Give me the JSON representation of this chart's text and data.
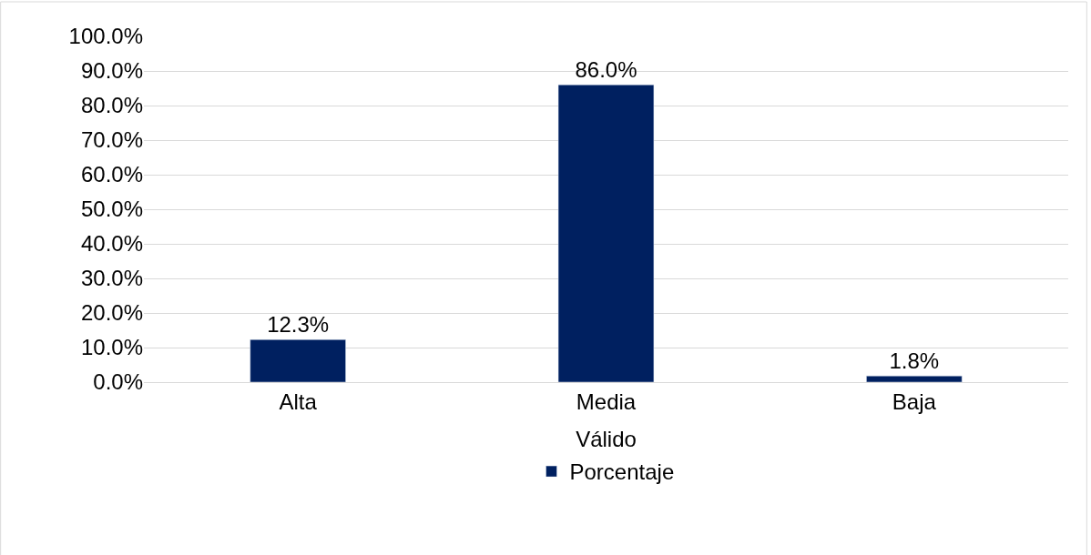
{
  "chart_data": {
    "type": "bar",
    "categories": [
      "Alta",
      "Media",
      "Baja"
    ],
    "series": [
      {
        "name": "Porcentaje",
        "color": "#002060",
        "values": [
          12.3,
          86.0,
          1.8
        ],
        "value_labels": [
          "12.3%",
          "86.0%",
          "1.8%"
        ]
      }
    ],
    "xlabel": "Válido",
    "ylim": [
      0,
      100
    ],
    "yticks": [
      {
        "value": 0,
        "label": "0.0%"
      },
      {
        "value": 10,
        "label": "10.0%"
      },
      {
        "value": 20,
        "label": "20.0%"
      },
      {
        "value": 30,
        "label": "30.0%"
      },
      {
        "value": 40,
        "label": "40.0%"
      },
      {
        "value": 50,
        "label": "50.0%"
      },
      {
        "value": 60,
        "label": "60.0%"
      },
      {
        "value": 70,
        "label": "70.0%"
      },
      {
        "value": 80,
        "label": "80.0%"
      },
      {
        "value": 90,
        "label": "90.0%"
      },
      {
        "value": 100,
        "label": "100.0%"
      }
    ],
    "grid": "y",
    "legend": "bottom"
  }
}
